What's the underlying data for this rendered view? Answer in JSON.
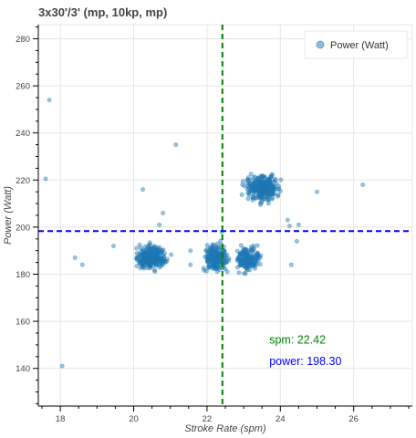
{
  "chart_data": {
    "type": "scatter",
    "title": "3x30'/3' (mp, 10kp, mp)",
    "xlabel": "Stroke Rate (spm)",
    "ylabel": "Power (Watt)",
    "xlim": [
      17.4,
      27.6
    ],
    "ylim": [
      124,
      286
    ],
    "xticks": [
      18,
      20,
      22,
      24,
      26
    ],
    "yticks": [
      140,
      160,
      180,
      200,
      220,
      240,
      260,
      280
    ],
    "grid": true,
    "legend_position": "top-right",
    "series": [
      {
        "name": "Power (Watt)",
        "color": "#1f77b4",
        "clusters": [
          {
            "x_range": [
              19.9,
              21.1
            ],
            "y_range": [
              180,
              194
            ],
            "count": 320
          },
          {
            "x_range": [
              21.8,
              22.7
            ],
            "y_range": [
              179,
              195
            ],
            "count": 220
          },
          {
            "x_range": [
              22.6,
              23.6
            ],
            "y_range": [
              179,
              194
            ],
            "count": 180
          },
          {
            "x_range": [
              22.8,
              24.2
            ],
            "y_range": [
              209,
              224
            ],
            "count": 300
          }
        ],
        "outliers": [
          {
            "x": 17.7,
            "y": 254
          },
          {
            "x": 17.6,
            "y": 220.5
          },
          {
            "x": 18.05,
            "y": 141
          },
          {
            "x": 18.4,
            "y": 187
          },
          {
            "x": 18.6,
            "y": 184
          },
          {
            "x": 19.45,
            "y": 192
          },
          {
            "x": 20.25,
            "y": 216
          },
          {
            "x": 20.8,
            "y": 206
          },
          {
            "x": 20.7,
            "y": 201
          },
          {
            "x": 21.15,
            "y": 235
          },
          {
            "x": 21.55,
            "y": 190
          },
          {
            "x": 21.55,
            "y": 184
          },
          {
            "x": 22.4,
            "y": 198
          },
          {
            "x": 24.2,
            "y": 203
          },
          {
            "x": 24.25,
            "y": 200.5
          },
          {
            "x": 24.3,
            "y": 184
          },
          {
            "x": 24.45,
            "y": 194
          },
          {
            "x": 24.5,
            "y": 201
          },
          {
            "x": 25.0,
            "y": 215
          },
          {
            "x": 26.25,
            "y": 218
          }
        ]
      }
    ],
    "reference_lines": [
      {
        "orientation": "vertical",
        "value": 22.42,
        "color": "#008000",
        "style": "dashed"
      },
      {
        "orientation": "horizontal",
        "value": 198.3,
        "color": "#0000ff",
        "style": "dashed"
      }
    ],
    "annotations": [
      {
        "label": "spm:",
        "value": "22.42",
        "color": "#008000",
        "x": 23.7,
        "y": 150.5
      },
      {
        "label": "power:",
        "value": "198.30",
        "color": "#0000ff",
        "x": 23.7,
        "y": 141.5
      }
    ]
  }
}
